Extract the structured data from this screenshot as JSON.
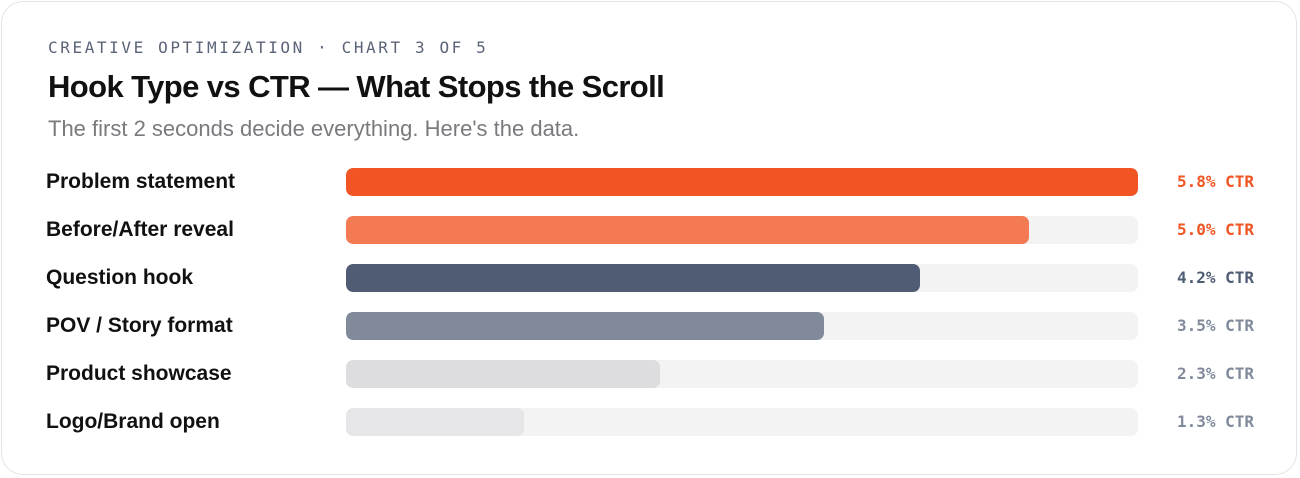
{
  "header": {
    "eyebrow": "CREATIVE OPTIMIZATION · CHART 3 OF 5",
    "title": "Hook Type vs CTR — What Stops the Scroll",
    "subtitle": "The first 2 seconds decide everything. Here's the data."
  },
  "colors": {
    "orange": "#f05523",
    "light_orange": "#f37a52",
    "slate": "#4f5c73",
    "gray_slate": "#818a9b",
    "light_gray": "#dddddf",
    "lighter_gray": "#e6e6e9",
    "track": "#f3f3f4",
    "accent_text": "#f05523",
    "muted_text": "#4f5c73"
  },
  "chart_data": {
    "type": "bar",
    "orientation": "horizontal",
    "categories": [
      "Problem statement",
      "Before/After reveal",
      "Question hook",
      "POV / Story format",
      "Product showcase",
      "Logo/Brand open"
    ],
    "values": [
      5.8,
      5.0,
      4.2,
      3.5,
      2.3,
      1.3
    ],
    "value_labels": [
      "5.8% CTR",
      "5.0% CTR",
      "4.2% CTR",
      "3.5% CTR",
      "2.3% CTR",
      "1.3% CTR"
    ],
    "bar_colors": [
      "#f05523",
      "#f37a52",
      "#4f5c73",
      "#818a9b",
      "#dddddf",
      "#e6e6e9"
    ],
    "label_colors": [
      "#f05523",
      "#f05523",
      "#4f5c73",
      "#818a9b",
      "#818a9b",
      "#818a9b"
    ],
    "xlim": [
      0,
      5.8
    ],
    "grid": false,
    "legend": "none"
  }
}
